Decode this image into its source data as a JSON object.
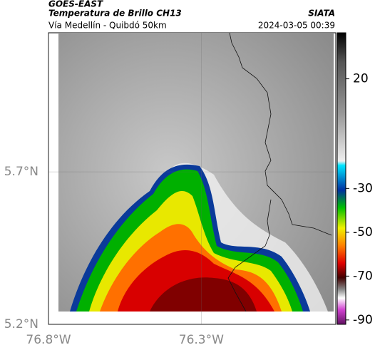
{
  "header": {
    "source": "GOES-EAST",
    "product": "Temperatura de Brillo CH13",
    "org": "SIATA",
    "region": "Vía Medellín - Quibdó 50km",
    "datetime": "2024-03-05 00:39"
  },
  "map": {
    "lon_range": [
      -76.8,
      -75.86
    ],
    "lat_range": [
      5.2,
      6.156
    ],
    "lon_ticks": [
      {
        "value": -76.8,
        "label": "76.8°W"
      },
      {
        "value": -76.3,
        "label": "76.3°W"
      }
    ],
    "lat_ticks": [
      {
        "value": 5.7,
        "label": "5.7°N"
      },
      {
        "value": 5.2,
        "label": "5.2°N"
      }
    ]
  },
  "colorbar": {
    "lim": [
      -92,
      41
    ],
    "ticks": [
      20,
      -30,
      -50,
      -70,
      -90
    ]
  }
}
